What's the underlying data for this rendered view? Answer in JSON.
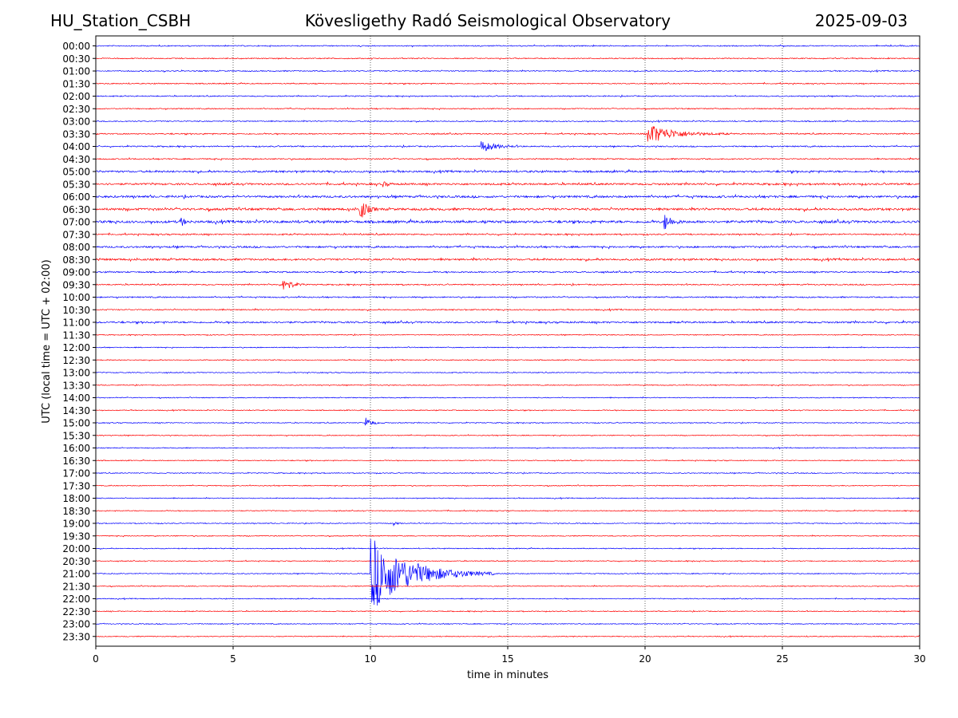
{
  "header": {
    "station": "HU_Station_CSBH",
    "title": "Kövesligethy Radó Seismological Observatory",
    "date": "2025-09-03"
  },
  "chart_data": {
    "type": "line",
    "title": "Kövesligethy Radó Seismological Observatory",
    "xlabel": "time in minutes",
    "ylabel": "UTC (local time = UTC + 02:00)",
    "xlim": [
      0,
      30
    ],
    "xticks": [
      0,
      5,
      10,
      15,
      20,
      25,
      30
    ],
    "vertical_gridlines": [
      5,
      10,
      15,
      20,
      25
    ],
    "row_labels": [
      "00:00",
      "00:30",
      "01:00",
      "01:30",
      "02:00",
      "02:30",
      "03:00",
      "03:30",
      "04:00",
      "04:30",
      "05:00",
      "05:30",
      "06:00",
      "06:30",
      "07:00",
      "07:30",
      "08:00",
      "08:30",
      "09:00",
      "09:30",
      "10:00",
      "10:30",
      "11:00",
      "11:30",
      "12:00",
      "12:30",
      "13:00",
      "13:30",
      "14:00",
      "14:30",
      "15:00",
      "15:30",
      "16:00",
      "16:30",
      "17:00",
      "17:30",
      "18:00",
      "18:30",
      "19:00",
      "19:30",
      "20:00",
      "20:30",
      "21:00",
      "21:30",
      "22:00",
      "22:30",
      "23:00",
      "23:30"
    ],
    "trace_colors": [
      "#0000ff",
      "#ff0000"
    ],
    "row_noise": [
      0.6,
      0.6,
      0.6,
      0.6,
      0.6,
      0.6,
      0.6,
      0.7,
      0.7,
      0.7,
      1.1,
      1.1,
      1.2,
      1.3,
      1.4,
      0.8,
      1.0,
      1.1,
      0.8,
      0.7,
      0.7,
      0.7,
      1.0,
      0.5,
      0.5,
      0.5,
      0.5,
      0.5,
      0.5,
      0.5,
      0.5,
      0.5,
      0.5,
      0.5,
      0.5,
      0.5,
      0.5,
      0.5,
      0.5,
      0.5,
      0.5,
      0.5,
      0.5,
      0.5,
      0.5,
      0.5,
      0.5,
      0.5
    ],
    "events": [
      {
        "row": "03:30",
        "minute": 20.1,
        "amplitude": 13,
        "duration": 3.0
      },
      {
        "row": "04:00",
        "minute": 14.0,
        "amplitude": 8,
        "duration": 1.6
      },
      {
        "row": "05:30",
        "minute": 10.4,
        "amplitude": 4,
        "duration": 0.6
      },
      {
        "row": "06:30",
        "minute": 9.6,
        "amplitude": 18,
        "duration": 0.7
      },
      {
        "row": "07:00",
        "minute": 3.1,
        "amplitude": 6,
        "duration": 0.4
      },
      {
        "row": "07:00",
        "minute": 20.7,
        "amplitude": 11,
        "duration": 0.8
      },
      {
        "row": "09:30",
        "minute": 6.8,
        "amplitude": 13,
        "duration": 0.8
      },
      {
        "row": "15:00",
        "minute": 9.8,
        "amplitude": 8,
        "duration": 0.7
      },
      {
        "row": "19:00",
        "minute": 10.8,
        "amplitude": 3,
        "duration": 0.5
      },
      {
        "row": "21:00",
        "minute": 10.0,
        "amplitude": 48,
        "duration": 4.5
      }
    ]
  }
}
